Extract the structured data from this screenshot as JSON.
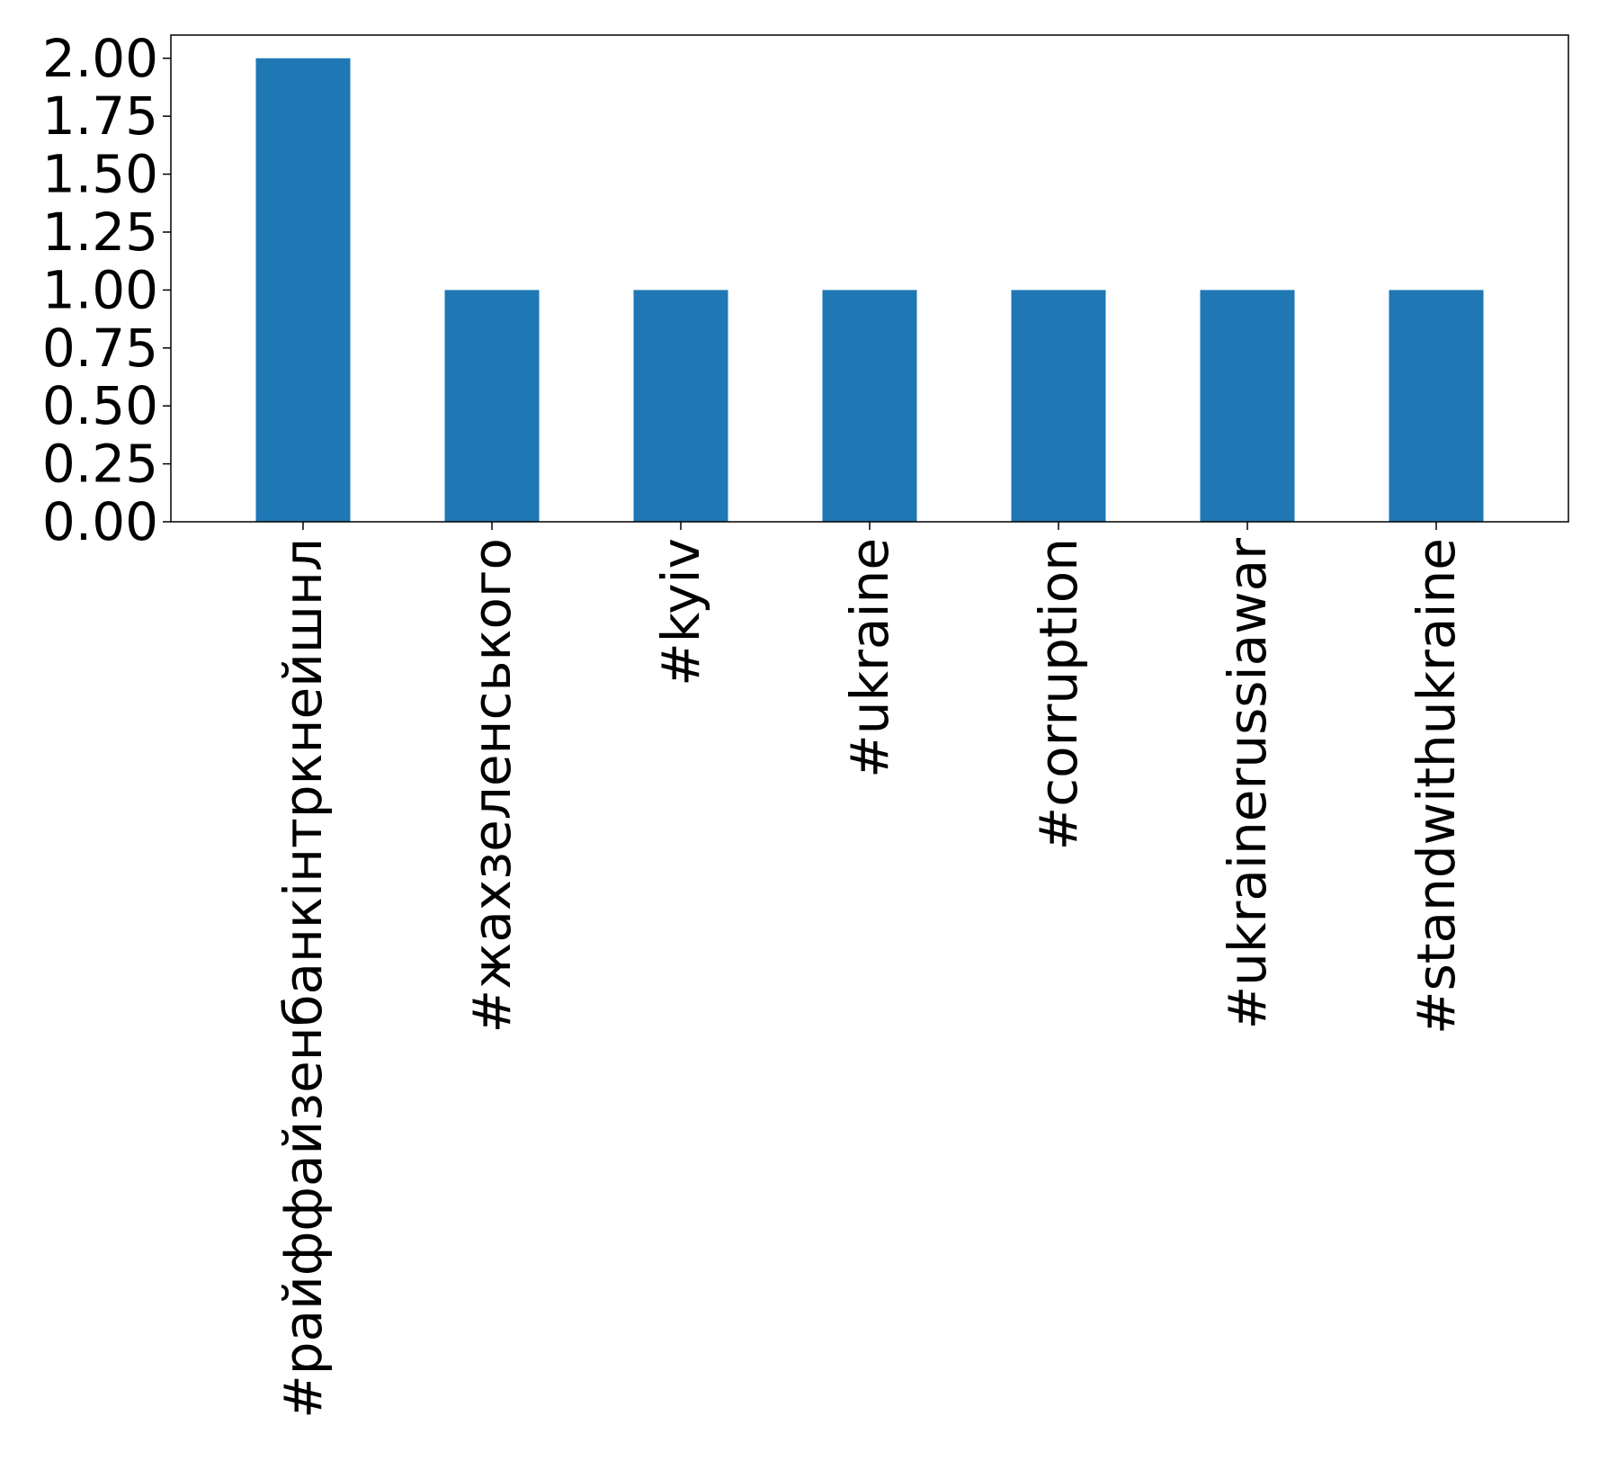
{
  "chart_data": {
    "type": "bar",
    "categories": [
      "#райффайзенбанкінтркнейшнл",
      "#жахзеленського",
      "#kyiv",
      "#ukraine",
      "#corruption",
      "#ukrainerussiawar",
      "#standwithukraine"
    ],
    "values": [
      2,
      1,
      1,
      1,
      1,
      1,
      1
    ],
    "ylim": [
      0,
      2.1
    ],
    "yticks": [
      "0.00",
      "0.25",
      "0.50",
      "0.75",
      "1.00",
      "1.25",
      "1.50",
      "1.75",
      "2.00"
    ],
    "ytick_values": [
      0,
      0.25,
      0.5,
      0.75,
      1.0,
      1.25,
      1.5,
      1.75,
      2.0
    ],
    "bar_color": "#1f77b4",
    "title": "",
    "xlabel": "",
    "ylabel": "",
    "grid": false,
    "legend": "none"
  }
}
